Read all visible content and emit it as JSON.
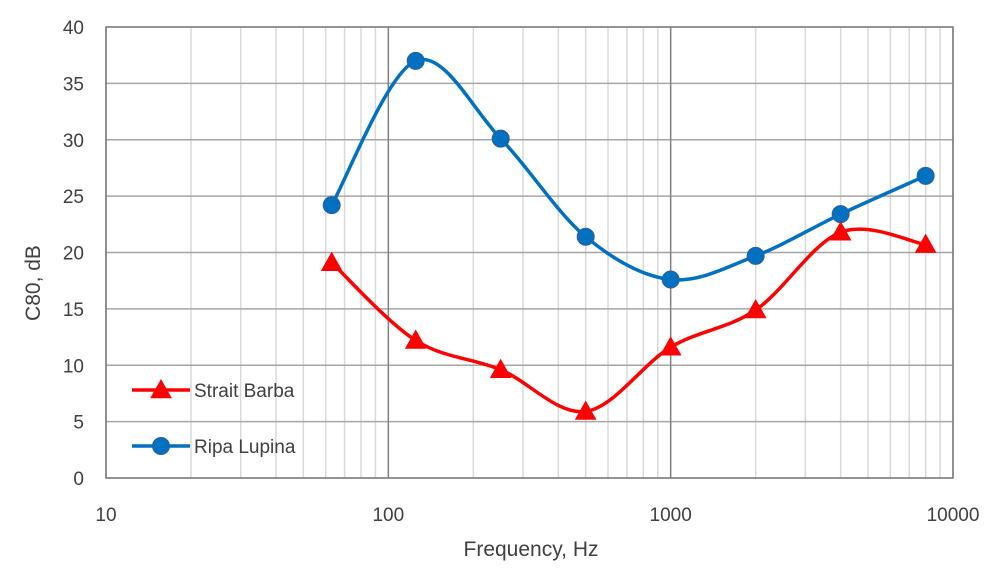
{
  "chart_data": {
    "type": "line",
    "title": "",
    "xlabel": "Frequency, Hz",
    "ylabel": "C80, dB",
    "x_scale": "log",
    "xlim": [
      10,
      10000
    ],
    "ylim": [
      0,
      40
    ],
    "x_ticks": [
      10,
      100,
      1000,
      10000
    ],
    "x_tick_labels": [
      "10",
      "100",
      "1000",
      "10000"
    ],
    "y_ticks": [
      0,
      5,
      10,
      15,
      20,
      25,
      30,
      35,
      40
    ],
    "y_tick_labels": [
      "0",
      "5",
      "10",
      "15",
      "20",
      "25",
      "30",
      "35",
      "40"
    ],
    "grid": true,
    "legend_position": "bottom-left",
    "x": [
      63,
      125,
      250,
      500,
      1000,
      2000,
      4000,
      8000
    ],
    "series": [
      {
        "name": "Strait Barba",
        "values": [
          19.1,
          12.2,
          9.6,
          5.9,
          11.6,
          14.9,
          21.8,
          20.7
        ],
        "color": "#ff0000",
        "marker": "triangle"
      },
      {
        "name": "Ripa Lupina",
        "values": [
          24.2,
          37.0,
          30.1,
          21.4,
          17.6,
          19.7,
          23.4,
          26.8
        ],
        "color": "#0070c0",
        "marker": "circle"
      }
    ]
  }
}
